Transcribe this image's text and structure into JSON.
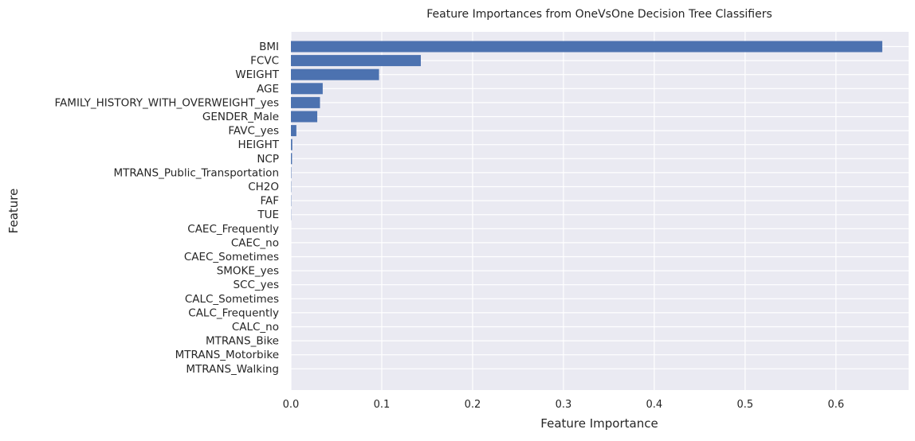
{
  "chart_data": {
    "type": "bar",
    "orientation": "horizontal",
    "title": "Feature Importances from OneVsOne Decision Tree Classifiers",
    "xlabel": "Feature Importance",
    "ylabel": "Feature",
    "xlim": [
      0,
      0.68
    ],
    "xticks": [
      0.0,
      0.1,
      0.2,
      0.3,
      0.4,
      0.5,
      0.6
    ],
    "xtick_labels": [
      "0.0",
      "0.1",
      "0.2",
      "0.3",
      "0.4",
      "0.5",
      "0.6"
    ],
    "grid": true,
    "colors": {
      "bar": "#4c72b0",
      "plot_bg": "#eaeaf2",
      "grid": "#ffffff"
    },
    "categories": [
      "BMI",
      "FCVC",
      "WEIGHT",
      "AGE",
      "FAMILY_HISTORY_WITH_OVERWEIGHT_yes",
      "GENDER_Male",
      "FAVC_yes",
      "HEIGHT",
      "NCP",
      "MTRANS_Public_Transportation",
      "CH2O",
      "FAF",
      "TUE",
      "CAEC_Frequently",
      "CAEC_no",
      "CAEC_Sometimes",
      "SMOKE_yes",
      "SCC_yes",
      "CALC_Sometimes",
      "CALC_Frequently",
      "CALC_no",
      "MTRANS_Bike",
      "MTRANS_Motorbike",
      "MTRANS_Walking"
    ],
    "values": [
      0.651,
      0.143,
      0.097,
      0.035,
      0.032,
      0.029,
      0.006,
      0.0015,
      0.0012,
      0.0004,
      0.0003,
      0.0003,
      0.0002,
      0,
      0,
      0,
      0,
      0,
      0,
      0,
      0,
      0,
      0,
      0
    ]
  }
}
